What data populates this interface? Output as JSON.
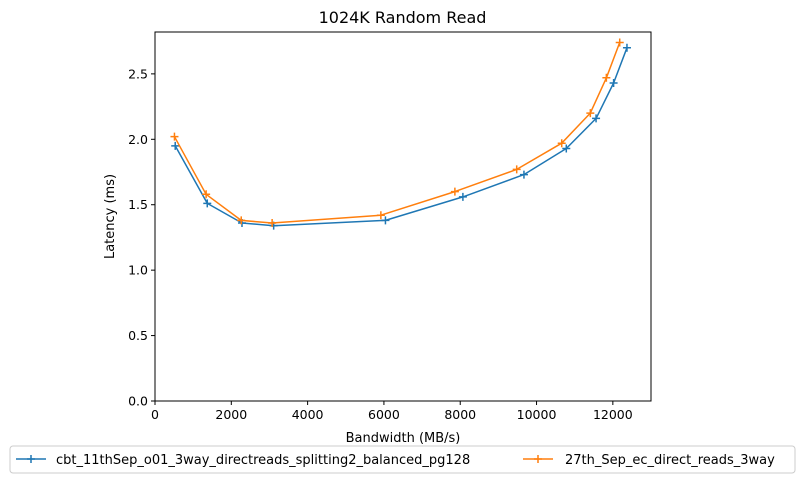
{
  "chart_data": {
    "type": "line",
    "title": "1024K  Random Read",
    "xlabel": "Bandwidth (MB/s)",
    "ylabel": "Latency (ms)",
    "xlim": [
      0,
      13000
    ],
    "ylim": [
      0,
      2.82
    ],
    "xticks": [
      0,
      2000,
      4000,
      6000,
      8000,
      10000,
      12000
    ],
    "yticks": [
      0.0,
      0.5,
      1.0,
      1.5,
      2.0,
      2.5
    ],
    "xtick_labels": [
      "0",
      "2000",
      "4000",
      "6000",
      "8000",
      "10000",
      "12000"
    ],
    "ytick_labels": [
      "0.0",
      "0.5",
      "1.0",
      "1.5",
      "2.0",
      "2.5"
    ],
    "grid": false,
    "legend_position": "below chart",
    "marker": "+",
    "series": [
      {
        "name": "cbt_11thSep_o01_3way_directreads_splitting2_balanced_pg128",
        "color": "#1f77b4",
        "x": [
          530,
          1370,
          2280,
          3110,
          6040,
          8070,
          9670,
          10780,
          11560,
          12020,
          12370
        ],
        "y": [
          1.95,
          1.51,
          1.36,
          1.34,
          1.38,
          1.56,
          1.73,
          1.93,
          2.16,
          2.43,
          2.7
        ]
      },
      {
        "name": "27th_Sep_ec_direct_reads_3way",
        "color": "#ff7f0e",
        "x": [
          510,
          1340,
          2260,
          3070,
          5920,
          7860,
          9480,
          10660,
          11410,
          11830,
          12180
        ],
        "y": [
          2.02,
          1.58,
          1.38,
          1.36,
          1.42,
          1.6,
          1.77,
          1.97,
          2.2,
          2.47,
          2.74
        ]
      }
    ]
  }
}
